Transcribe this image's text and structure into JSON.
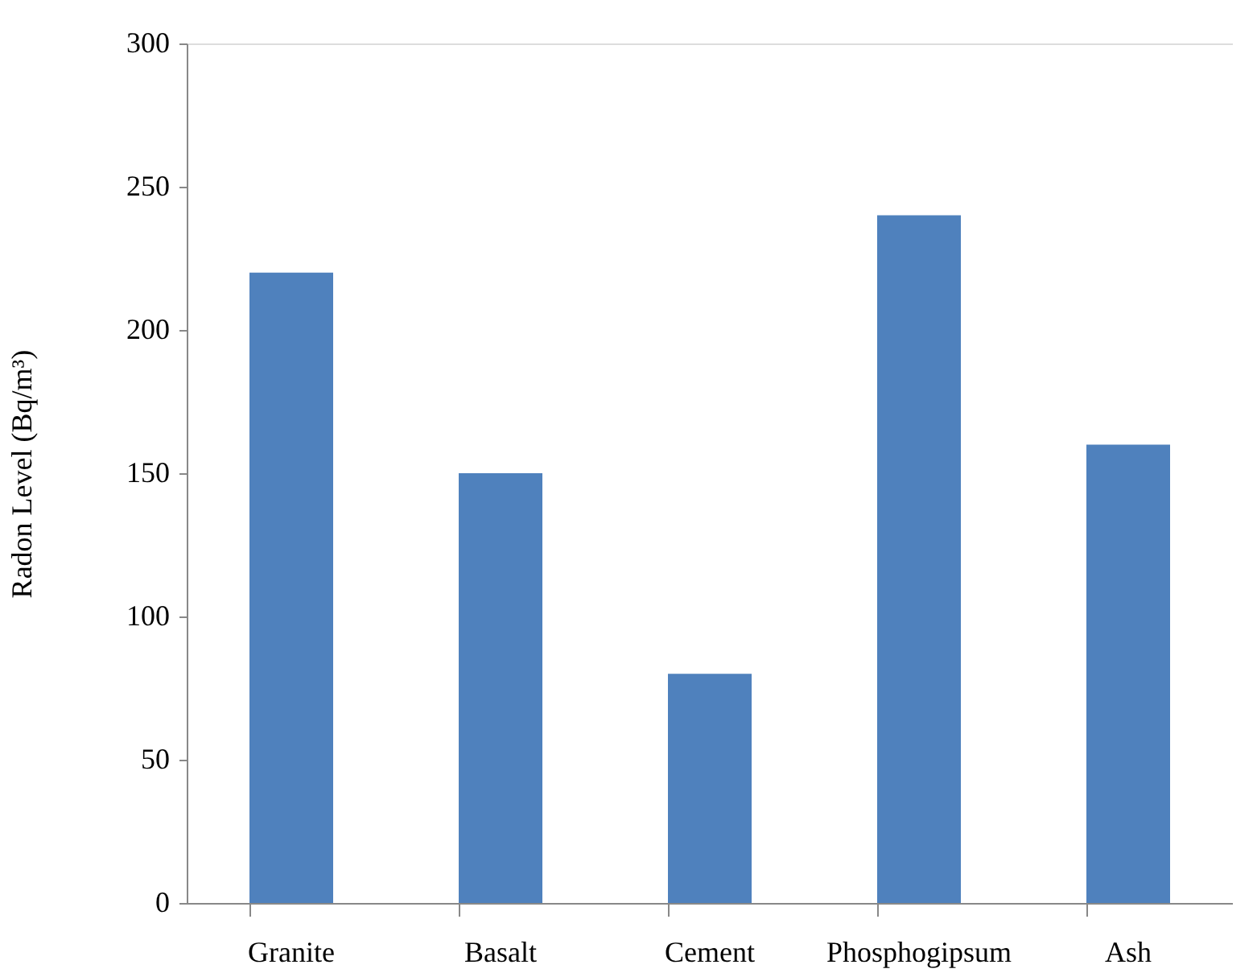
{
  "chart_data": {
    "type": "bar",
    "ylabel": "Radon Level (Bq/m³)",
    "categories": [
      "Granite",
      "Basalt",
      "Cement",
      "Phosphogipsum",
      "Ash"
    ],
    "values": [
      220,
      150,
      80,
      240,
      160
    ],
    "color": "#4f81bd",
    "ylim": [
      0,
      300
    ],
    "yticks": [
      0,
      50,
      100,
      150,
      200,
      250,
      300
    ],
    "grid": false
  }
}
